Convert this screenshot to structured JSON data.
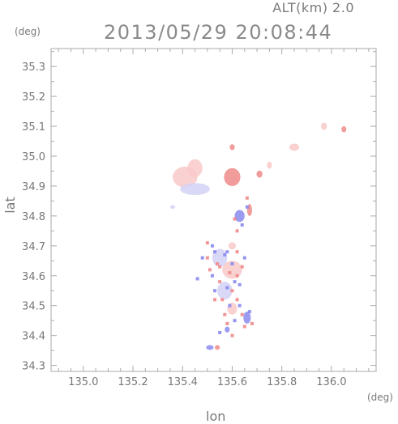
{
  "header": {
    "altitude": "ALT(km) 2.0",
    "datetime": "2013/05/29 20:08:44"
  },
  "chart_data": {
    "type": "scatter",
    "title": "2013/05/29 20:08:44",
    "subtitle": "ALT(km) 2.0",
    "xlabel": "lon",
    "ylabel": "lat",
    "x_unit": "(deg)",
    "y_unit": "(deg)",
    "xlim": [
      134.87,
      136.18
    ],
    "ylim": [
      34.28,
      35.36
    ],
    "x_ticks": [
      "135.0",
      "135.2",
      "135.4",
      "135.6",
      "135.8",
      "136.0"
    ],
    "y_ticks": [
      "34.3",
      "34.4",
      "34.5",
      "34.6",
      "34.7",
      "34.8",
      "34.9",
      "35.0",
      "35.1",
      "35.2",
      "35.3"
    ],
    "grid": false,
    "colors": {
      "positive": "#f08a8a",
      "positive_light": "#f9c9c9",
      "negative": "#8a8af0",
      "negative_light": "#d2d2f6",
      "axis": "#aaaaaa"
    },
    "blobs": [
      {
        "lon": 135.41,
        "lat": 34.93,
        "rlon": 0.05,
        "rlat": 0.035,
        "polarity": "positive_light"
      },
      {
        "lon": 135.45,
        "lat": 34.96,
        "rlon": 0.03,
        "rlat": 0.03,
        "polarity": "positive_light"
      },
      {
        "lon": 135.45,
        "lat": 34.89,
        "rlon": 0.06,
        "rlat": 0.02,
        "polarity": "negative_light"
      },
      {
        "lon": 135.6,
        "lat": 34.93,
        "rlon": 0.033,
        "rlat": 0.03,
        "polarity": "positive"
      },
      {
        "lon": 135.6,
        "lat": 35.03,
        "rlon": 0.01,
        "rlat": 0.01,
        "polarity": "positive"
      },
      {
        "lon": 135.71,
        "lat": 34.94,
        "rlon": 0.012,
        "rlat": 0.012,
        "polarity": "positive"
      },
      {
        "lon": 135.75,
        "lat": 34.97,
        "rlon": 0.01,
        "rlat": 0.012,
        "polarity": "positive_light"
      },
      {
        "lon": 135.85,
        "lat": 35.03,
        "rlon": 0.02,
        "rlat": 0.012,
        "polarity": "positive_light"
      },
      {
        "lon": 135.97,
        "lat": 35.1,
        "rlon": 0.012,
        "rlat": 0.012,
        "polarity": "positive_light"
      },
      {
        "lon": 136.05,
        "lat": 35.09,
        "rlon": 0.01,
        "rlat": 0.01,
        "polarity": "positive"
      },
      {
        "lon": 135.36,
        "lat": 34.83,
        "rlon": 0.01,
        "rlat": 0.006,
        "polarity": "negative_light"
      },
      {
        "lon": 135.63,
        "lat": 34.8,
        "rlon": 0.02,
        "rlat": 0.02,
        "polarity": "negative"
      },
      {
        "lon": 135.67,
        "lat": 34.82,
        "rlon": 0.01,
        "rlat": 0.02,
        "polarity": "positive"
      },
      {
        "lon": 135.6,
        "lat": 34.7,
        "rlon": 0.015,
        "rlat": 0.012,
        "polarity": "positive_light"
      },
      {
        "lon": 135.55,
        "lat": 34.66,
        "rlon": 0.03,
        "rlat": 0.03,
        "polarity": "negative_light"
      },
      {
        "lon": 135.6,
        "lat": 34.62,
        "rlon": 0.04,
        "rlat": 0.03,
        "polarity": "positive_light"
      },
      {
        "lon": 135.57,
        "lat": 34.55,
        "rlon": 0.03,
        "rlat": 0.03,
        "polarity": "negative_light"
      },
      {
        "lon": 135.6,
        "lat": 34.49,
        "rlon": 0.02,
        "rlat": 0.02,
        "polarity": "positive_light"
      },
      {
        "lon": 135.66,
        "lat": 34.46,
        "rlon": 0.015,
        "rlat": 0.02,
        "polarity": "negative"
      },
      {
        "lon": 135.58,
        "lat": 34.42,
        "rlon": 0.01,
        "rlat": 0.01,
        "polarity": "negative"
      },
      {
        "lon": 135.51,
        "lat": 34.36,
        "rlon": 0.015,
        "rlat": 0.008,
        "polarity": "negative"
      },
      {
        "lon": 135.54,
        "lat": 34.36,
        "rlon": 0.01,
        "rlat": 0.008,
        "polarity": "positive"
      }
    ],
    "points": [
      [
        135.5,
        34.66,
        "p"
      ],
      [
        135.53,
        34.68,
        "n"
      ],
      [
        135.55,
        34.63,
        "p"
      ],
      [
        135.57,
        34.67,
        "n"
      ],
      [
        135.59,
        34.61,
        "p"
      ],
      [
        135.6,
        34.64,
        "n"
      ],
      [
        135.62,
        34.6,
        "p"
      ],
      [
        135.64,
        34.63,
        "p"
      ],
      [
        135.52,
        34.6,
        "n"
      ],
      [
        135.55,
        34.58,
        "p"
      ],
      [
        135.58,
        34.56,
        "n"
      ],
      [
        135.6,
        34.55,
        "p"
      ],
      [
        135.63,
        34.57,
        "n"
      ],
      [
        135.56,
        34.52,
        "p"
      ],
      [
        135.59,
        34.5,
        "n"
      ],
      [
        135.62,
        34.52,
        "p"
      ],
      [
        135.57,
        34.47,
        "p"
      ],
      [
        135.61,
        34.45,
        "n"
      ],
      [
        135.64,
        34.47,
        "p"
      ],
      [
        135.67,
        34.48,
        "n"
      ],
      [
        135.65,
        34.43,
        "p"
      ],
      [
        135.55,
        34.41,
        "n"
      ],
      [
        135.6,
        34.4,
        "p"
      ],
      [
        135.53,
        34.55,
        "n"
      ],
      [
        135.51,
        34.62,
        "p"
      ],
      [
        135.48,
        34.66,
        "n"
      ],
      [
        135.46,
        34.59,
        "n"
      ],
      [
        135.61,
        34.79,
        "p"
      ],
      [
        135.64,
        34.77,
        "n"
      ],
      [
        135.66,
        34.83,
        "n"
      ],
      [
        135.62,
        34.75,
        "p"
      ],
      [
        135.66,
        34.86,
        "p"
      ],
      [
        135.58,
        34.68,
        "n"
      ],
      [
        135.5,
        34.71,
        "p"
      ],
      [
        135.52,
        34.7,
        "n"
      ],
      [
        135.62,
        34.68,
        "p"
      ],
      [
        135.65,
        34.66,
        "n"
      ],
      [
        135.53,
        34.52,
        "p"
      ],
      [
        135.63,
        34.5,
        "n"
      ],
      [
        135.68,
        34.44,
        "p"
      ],
      [
        135.58,
        34.44,
        "p"
      ],
      [
        135.61,
        34.58,
        "n"
      ],
      [
        135.54,
        34.64,
        "p"
      ]
    ]
  }
}
